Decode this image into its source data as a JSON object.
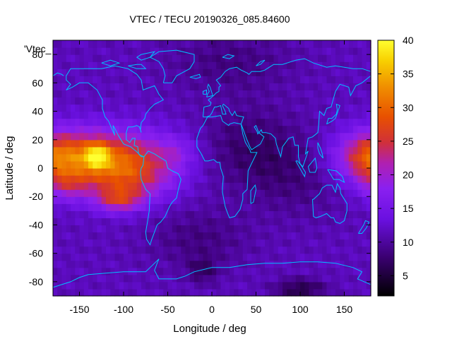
{
  "chart_data": {
    "type": "heatmap",
    "title": "VTEC / TECU 20190326_085.84600",
    "xlabel": "Longitude / deg",
    "ylabel": "Latitude / deg",
    "series_key": "'Vtec_",
    "xlim": [
      -180,
      180
    ],
    "ylim": [
      -90,
      90
    ],
    "xticks": [
      -150,
      -100,
      -50,
      0,
      50,
      100,
      150
    ],
    "yticks": [
      -80,
      -60,
      -40,
      -20,
      0,
      20,
      40,
      60,
      80
    ],
    "colorbar": {
      "range": [
        2,
        40
      ],
      "ticks": [
        5,
        10,
        15,
        20,
        25,
        30,
        35,
        40
      ],
      "palette": [
        {
          "v": 0.0,
          "color": "#000000"
        },
        {
          "v": 0.15,
          "color": "#3a0070"
        },
        {
          "v": 0.3,
          "color": "#6a10e0"
        },
        {
          "v": 0.42,
          "color": "#8a20f0"
        },
        {
          "v": 0.52,
          "color": "#b020b0"
        },
        {
          "v": 0.6,
          "color": "#d0303a"
        },
        {
          "v": 0.7,
          "color": "#e85000"
        },
        {
          "v": 0.82,
          "color": "#f09000"
        },
        {
          "v": 0.92,
          "color": "#f8d000"
        },
        {
          "v": 1.0,
          "color": "#ffff30"
        }
      ]
    },
    "background_level": 11.5,
    "features": [
      {
        "lon": -125,
        "lat": 8,
        "sx": 55,
        "sy": 14,
        "amp": 16
      },
      {
        "lon": -95,
        "lat": -8,
        "sx": 35,
        "sy": 12,
        "amp": 9
      },
      {
        "lon": -130,
        "lat": 9,
        "sx": 10,
        "sy": 6,
        "amp": 12
      },
      {
        "lon": -105,
        "lat": -22,
        "sx": 18,
        "sy": 6,
        "amp": 10
      },
      {
        "lon": -165,
        "lat": -12,
        "sx": 18,
        "sy": 8,
        "amp": 6
      },
      {
        "lon": 180,
        "lat": 8,
        "sx": 25,
        "sy": 12,
        "amp": 10
      },
      {
        "lon": -40,
        "lat": 12,
        "sx": 15,
        "sy": 8,
        "amp": 3
      },
      {
        "lon": 40,
        "lat": 15,
        "sx": 40,
        "sy": 20,
        "amp": -4
      },
      {
        "lon": 100,
        "lat": -5,
        "sx": 40,
        "sy": 20,
        "amp": -3
      },
      {
        "lon": -15,
        "lat": -50,
        "sx": 40,
        "sy": 15,
        "amp": -3
      },
      {
        "lon": 100,
        "lat": -85,
        "sx": 20,
        "sy": 5,
        "amp": -6
      },
      {
        "lon": -10,
        "lat": -72,
        "sx": 12,
        "sy": 6,
        "amp": -4
      },
      {
        "lon": 20,
        "lat": 75,
        "sx": 50,
        "sy": 15,
        "amp": -3
      }
    ],
    "coastline_color": "#00c0ff"
  }
}
